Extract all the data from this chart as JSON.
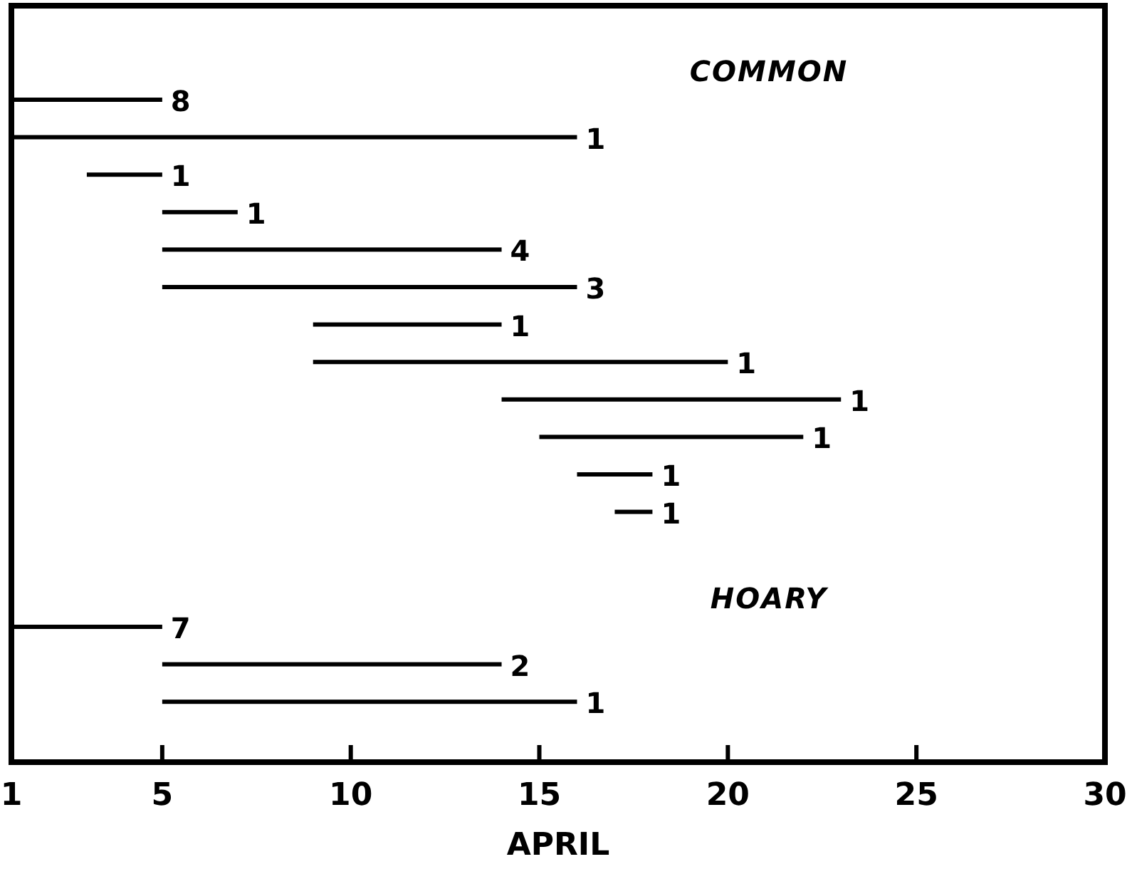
{
  "chart_data": [
    {
      "type": "bar",
      "orientation": "horizontal",
      "title": "COMMON",
      "categories": [
        null,
        null,
        null,
        null,
        null,
        null,
        null,
        null,
        null,
        null,
        null,
        null
      ],
      "base": [
        1,
        1,
        3,
        5,
        5,
        5,
        9,
        9,
        14,
        15,
        16,
        17
      ],
      "values": [
        4,
        15,
        2,
        2,
        9,
        11,
        5,
        11,
        9,
        7,
        2,
        1
      ],
      "color": "#000000",
      "xlim": [
        1,
        30
      ],
      "xticks": [
        1,
        5,
        10,
        15,
        20,
        25,
        30
      ],
      "tick_labels": false,
      "annotations": [
        {
          "text": "8",
          "x": 5
        },
        {
          "text": "1",
          "x": 16
        },
        {
          "text": "1",
          "x": 5
        },
        {
          "text": "1",
          "x": 7
        },
        {
          "text": "4",
          "x": 14
        },
        {
          "text": "3",
          "x": 16
        },
        {
          "text": "1",
          "x": 14
        },
        {
          "text": "1",
          "x": 20
        },
        {
          "text": "1",
          "x": 23
        },
        {
          "text": "1",
          "x": 22
        },
        {
          "text": "1",
          "x": 18
        },
        {
          "text": "1",
          "x": 18
        }
      ]
    },
    {
      "type": "bar",
      "orientation": "horizontal",
      "title": "HOARY",
      "categories": [
        null,
        null,
        null
      ],
      "base": [
        1,
        5,
        5
      ],
      "values": [
        4,
        9,
        11
      ],
      "color": "#000000",
      "xlabel": "APRIL",
      "xlim": [
        1,
        30
      ],
      "xticks": [
        1,
        5,
        10,
        15,
        20,
        25,
        30
      ],
      "tick_labels": "x",
      "annotations": [
        {
          "text": "7",
          "x": 5
        },
        {
          "text": "2",
          "x": 14
        },
        {
          "text": "1",
          "x": 16
        }
      ]
    }
  ]
}
